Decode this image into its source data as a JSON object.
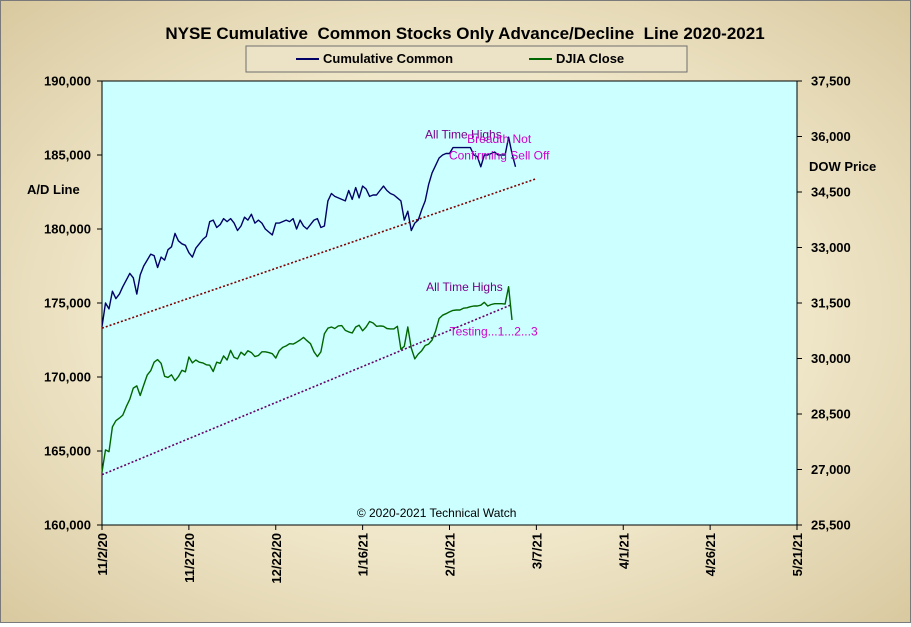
{
  "chart_data": {
    "type": "line",
    "title": "NYSE Cumulative  Common Stocks Only Advance/Decline  Line 2020-2021",
    "ylabel_left": "A/D Line",
    "ylabel_right": "DOW Price",
    "x_range": [
      "2020-11-02",
      "2021-05-21"
    ],
    "x_ticks": [
      "11/2/20",
      "11/27/20",
      "12/22/20",
      "1/16/21",
      "2/10/21",
      "3/7/21",
      "4/1/21",
      "4/26/21",
      "5/21/21"
    ],
    "y_left": {
      "min": 160000,
      "max": 190000,
      "ticks": [
        "160,000",
        "165,000",
        "170,000",
        "175,000",
        "180,000",
        "185,000",
        "190,000"
      ]
    },
    "y_right": {
      "min": 25500,
      "max": 37500,
      "ticks": [
        "25,500",
        "27,000",
        "28,500",
        "30,000",
        "31,500",
        "33,000",
        "34,500",
        "36,000",
        "37,500"
      ]
    },
    "grid": false,
    "legend_position": "top",
    "series": [
      {
        "name": "Cumulative Common",
        "axis": "left",
        "color": "#000066",
        "x": [
          0,
          1,
          2,
          3,
          4,
          5,
          6,
          8,
          9,
          10,
          11,
          12,
          13,
          14,
          15,
          16,
          17,
          18,
          19,
          20,
          21,
          22,
          23,
          24,
          25,
          26,
          27,
          28,
          29,
          30,
          31,
          32,
          33,
          34,
          35,
          36,
          37,
          38,
          39,
          40,
          41,
          42,
          43,
          44,
          45,
          46,
          47,
          48,
          49,
          50,
          51,
          52,
          53,
          54,
          55,
          56,
          57,
          58,
          59,
          60,
          61,
          62,
          63,
          64,
          65,
          66,
          67,
          68,
          69,
          70,
          71,
          72,
          73,
          74,
          75,
          76,
          77,
          78,
          79,
          80,
          81,
          82,
          83,
          84,
          85,
          86,
          87,
          88,
          89,
          90,
          91,
          92,
          93,
          94,
          95,
          96,
          97,
          98,
          99,
          100,
          101,
          102,
          103,
          104,
          105,
          106,
          107,
          108,
          109,
          110,
          111,
          112,
          113,
          114,
          115,
          116,
          117,
          118,
          119
        ],
        "values": [
          173400,
          175000,
          174600,
          175800,
          175300,
          175600,
          176100,
          177000,
          176700,
          175600,
          176900,
          177500,
          177900,
          178300,
          178200,
          177400,
          178100,
          177900,
          178600,
          178800,
          179700,
          179200,
          179000,
          178900,
          178400,
          178100,
          178700,
          179000,
          179300,
          179500,
          180500,
          180600,
          180100,
          180300,
          180700,
          180500,
          180700,
          180400,
          179900,
          180200,
          180800,
          180600,
          181000,
          180400,
          180600,
          180400,
          180000,
          179800,
          179600,
          180400,
          180400,
          180500,
          180600,
          180500,
          180700,
          180000,
          180600,
          180200,
          180000,
          180300,
          180600,
          180700,
          180100,
          180200,
          181900,
          182400,
          182200,
          182100,
          182000,
          181900,
          182600,
          182000,
          182800,
          182100,
          182900,
          182700,
          182200,
          182300,
          182300,
          182600,
          182900,
          182600,
          182400,
          182300,
          182100,
          181900,
          180600,
          181200,
          179900,
          180400,
          180600,
          181300,
          181900,
          183000,
          183800,
          184300,
          184800,
          185000,
          185100,
          185100,
          185500,
          185500,
          185500,
          185500,
          185500,
          185500,
          185000,
          184900,
          184200,
          185000,
          185000,
          185100,
          185200,
          185000,
          185000,
          185000,
          186200,
          185100,
          184200
        ]
      },
      {
        "name": "DJIA Close",
        "axis": "right",
        "color": "#006600",
        "x": [
          0,
          1,
          2,
          3,
          4,
          5,
          6,
          7,
          8,
          9,
          10,
          11,
          12,
          13,
          14,
          15,
          16,
          17,
          18,
          19,
          20,
          21,
          22,
          23,
          24,
          25,
          26,
          27,
          28,
          29,
          30,
          31,
          32,
          33,
          34,
          35,
          36,
          37,
          38,
          39,
          40,
          41,
          42,
          43,
          44,
          45,
          46,
          47,
          48,
          49,
          50,
          51,
          52,
          53,
          54,
          55,
          56,
          57,
          58,
          59,
          60,
          61,
          62,
          63,
          64,
          65,
          66,
          67,
          68,
          69,
          70,
          71,
          72,
          73,
          74,
          75,
          76,
          77,
          78,
          79,
          80,
          81,
          82,
          83,
          84,
          85,
          86,
          87,
          88,
          89,
          90,
          91,
          92,
          93,
          94,
          95,
          96,
          97,
          98,
          99,
          100,
          101,
          102,
          103,
          104,
          105,
          106,
          107,
          108,
          109,
          110,
          111,
          112,
          113,
          114,
          115,
          116,
          117,
          118
        ],
        "values": [
          26930,
          27530,
          27480,
          28150,
          28320,
          28390,
          28470,
          28700,
          28900,
          29200,
          29260,
          29000,
          29280,
          29550,
          29670,
          29900,
          29970,
          29870,
          29520,
          29490,
          29560,
          29400,
          29510,
          29680,
          29640,
          30040,
          29880,
          29960,
          29900,
          29880,
          29830,
          29820,
          29650,
          29900,
          29870,
          30070,
          29960,
          30220,
          30030,
          29990,
          30170,
          30090,
          30210,
          30160,
          30050,
          30080,
          30180,
          30180,
          30160,
          30130,
          30010,
          30210,
          30300,
          30340,
          30400,
          30390,
          30440,
          30500,
          30570,
          30480,
          30400,
          30180,
          30050,
          30180,
          30670,
          30820,
          30850,
          30810,
          30880,
          30890,
          30760,
          30720,
          30690,
          30850,
          30900,
          30750,
          30850,
          31000,
          30960,
          30870,
          30880,
          30870,
          30810,
          30800,
          30800,
          30870,
          30250,
          30330,
          30850,
          30280,
          29990,
          30120,
          30210,
          30350,
          30390,
          30500,
          30740,
          31080,
          31170,
          31210,
          31260,
          31300,
          31310,
          31310,
          31360,
          31370,
          31400,
          31420,
          31420,
          31440,
          31520,
          31420,
          31460,
          31480,
          31480,
          31480,
          31470,
          31940,
          31040
        ]
      }
    ],
    "trendlines": [
      {
        "axis": "left",
        "color": "#800000",
        "from": [
          0,
          173300
        ],
        "to": [
          125,
          183400
        ]
      },
      {
        "axis": "left",
        "color": "#660066",
        "from": [
          0,
          163400
        ],
        "to": [
          118,
          174900
        ]
      }
    ],
    "annotations": [
      {
        "text": "All Time Highs",
        "color": "#7a008a",
        "x": 104.0,
        "y_left": 186100
      },
      {
        "text": "Breadth Not",
        "color": "#cc00cc",
        "x": 114.3,
        "y_left": 185800
      },
      {
        "text": "Confirming  Sell Off",
        "color": "#cc00cc",
        "x": 114.3,
        "y_left": 184700
      },
      {
        "text": "All Time Highs",
        "color": "#7a008a",
        "x": 104.3,
        "y_left": 175800
      },
      {
        "text": "Testing...1...2...3",
        "color": "#cc00cc",
        "x": 112.7,
        "y_left": 172800
      },
      {
        "text": "© 2020-2021  Technical  Watch",
        "color": "#000000",
        "x": 96.3,
        "y_left": 160550
      }
    ]
  }
}
